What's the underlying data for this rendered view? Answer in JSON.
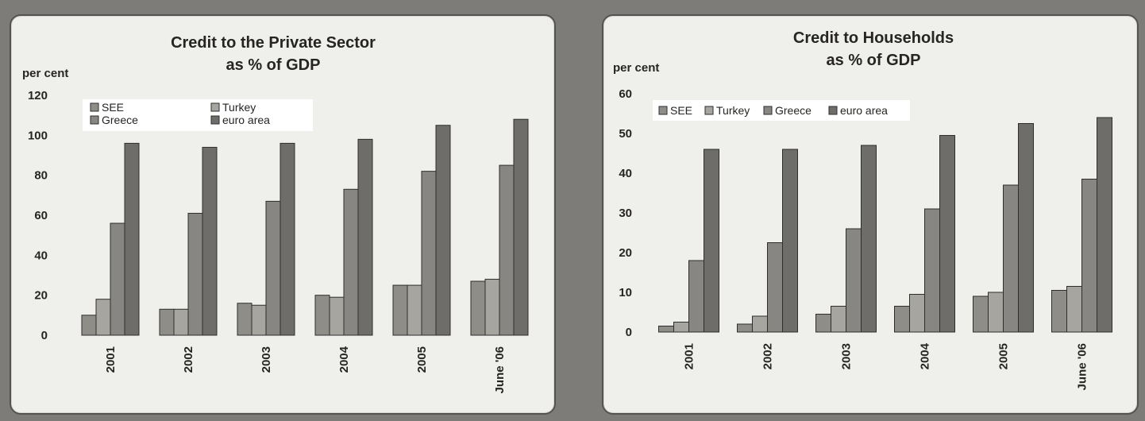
{
  "chart_data": [
    {
      "type": "bar",
      "title": "Credit to the Private Sector",
      "subtitle": "as % of GDP",
      "ylabel": "per cent",
      "ylim": [
        0,
        120
      ],
      "yticks": [
        0,
        20,
        40,
        60,
        80,
        100,
        120
      ],
      "categories": [
        "2001",
        "2002",
        "2003",
        "2004",
        "2005",
        "June '06"
      ],
      "series": [
        {
          "name": "SEE",
          "color": "#8f8d88",
          "values": [
            10,
            13,
            16,
            20,
            25,
            27
          ]
        },
        {
          "name": "Turkey",
          "color": "#a7a5a0",
          "values": [
            18,
            13,
            15,
            19,
            25,
            28
          ]
        },
        {
          "name": "Greece",
          "color": "#888682",
          "values": [
            56,
            61,
            67,
            73,
            82,
            85
          ]
        },
        {
          "name": "euro area",
          "color": "#6f6d69",
          "values": [
            96,
            94,
            96,
            98,
            105,
            108
          ]
        }
      ],
      "legend": {
        "placement": "top-left",
        "columns": 2
      },
      "grid": false
    },
    {
      "type": "bar",
      "title": "Credit to Households",
      "subtitle": "as % of GDP",
      "ylabel": "per cent",
      "ylim": [
        0,
        60
      ],
      "yticks": [
        0,
        10,
        20,
        30,
        40,
        50,
        60
      ],
      "categories": [
        "2001",
        "2002",
        "2003",
        "2004",
        "2005",
        "June '06"
      ],
      "series": [
        {
          "name": "SEE",
          "color": "#8f8d88",
          "values": [
            1.5,
            2,
            4.5,
            6.5,
            9,
            10.5
          ]
        },
        {
          "name": "Turkey",
          "color": "#a7a5a0",
          "values": [
            2.5,
            4,
            6.5,
            9.5,
            10,
            11.5
          ]
        },
        {
          "name": "Greece",
          "color": "#888682",
          "values": [
            18,
            22.5,
            26,
            31,
            37,
            38.5
          ]
        },
        {
          "name": "euro area",
          "color": "#6f6d69",
          "values": [
            46,
            46,
            47,
            49.5,
            52.5,
            54
          ]
        }
      ],
      "legend": {
        "placement": "top-left",
        "columns": 4
      },
      "grid": false
    }
  ]
}
